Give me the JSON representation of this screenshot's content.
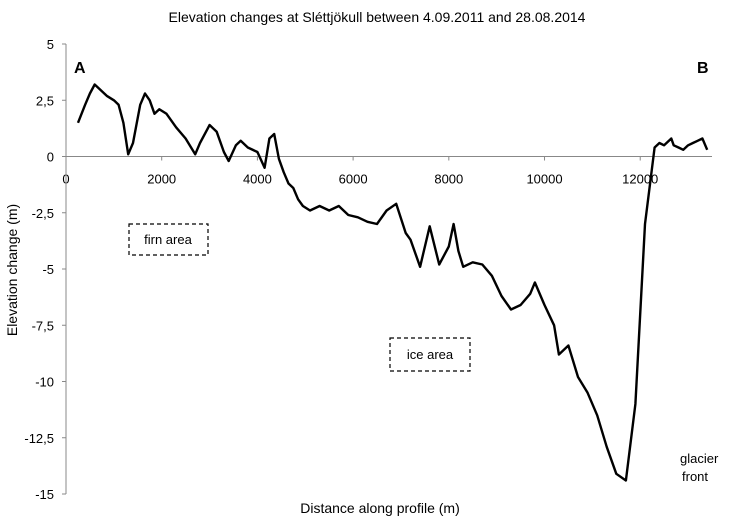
{
  "chart_data": {
    "type": "line",
    "title": "Elevation changes at Sléttjökull between 4.09.2011  and 28.08.2014",
    "xlabel": "Distance along profile (m)",
    "ylabel": "Elevation change (m)",
    "xlim": [
      0,
      13500
    ],
    "ylim": [
      -15,
      5
    ],
    "x_ticks": [
      "0",
      "2000",
      "4000",
      "6000",
      "8000",
      "10000",
      "12000"
    ],
    "x_tick_values": [
      0,
      2000,
      4000,
      6000,
      8000,
      10000,
      12000
    ],
    "y_ticks": [
      "5",
      "2,5",
      "0",
      "-2,5",
      "-5",
      "-7,5",
      "-10",
      "-12,5",
      "-15"
    ],
    "y_tick_values": [
      5,
      2.5,
      0,
      -2.5,
      -5,
      -7.5,
      -10,
      -12.5,
      -15
    ],
    "grid": false,
    "legend": "none",
    "line_color": "#000000",
    "annotations": {
      "start": "A",
      "end": "B",
      "firn": "firn area",
      "ice": "ice area",
      "front_line1": "glacier",
      "front_line2": "front"
    },
    "series": [
      {
        "x": [
          250,
          400,
          500,
          600,
          700,
          850,
          1000,
          1100,
          1200,
          1300,
          1400,
          1550,
          1650,
          1750,
          1850,
          1950,
          2100,
          2300,
          2500,
          2700,
          2800,
          3000,
          3150,
          3300,
          3400,
          3550,
          3650,
          3800,
          4000,
          4150,
          4250,
          4350,
          4450,
          4550,
          4650,
          4750,
          4850,
          4950,
          5100,
          5300,
          5500,
          5700,
          5900,
          6100,
          6300,
          6500,
          6700,
          6900,
          7100,
          7200,
          7400,
          7600,
          7800,
          8000,
          8100,
          8200,
          8300,
          8500,
          8700,
          8900,
          9100,
          9300,
          9500,
          9700,
          9800,
          10000,
          10200,
          10300,
          10500,
          10700,
          10900,
          11100,
          11300,
          11500,
          11700,
          11900,
          12100,
          12300,
          12400,
          12500,
          12600,
          12650,
          12700,
          12800,
          12900,
          13000,
          13100,
          13200,
          13300,
          13400
        ],
        "y": [
          1.5,
          2.3,
          2.8,
          3.2,
          3.0,
          2.7,
          2.5,
          2.3,
          1.5,
          0.1,
          0.6,
          2.3,
          2.8,
          2.5,
          1.9,
          2.1,
          1.9,
          1.3,
          0.8,
          0.1,
          0.6,
          1.4,
          1.1,
          0.2,
          -0.2,
          0.5,
          0.7,
          0.4,
          0.2,
          -0.5,
          0.8,
          1.0,
          -0.1,
          -0.7,
          -1.2,
          -1.4,
          -1.9,
          -2.2,
          -2.4,
          -2.2,
          -2.4,
          -2.2,
          -2.6,
          -2.7,
          -2.9,
          -3.0,
          -2.4,
          -2.1,
          -3.4,
          -3.7,
          -4.9,
          -3.1,
          -4.8,
          -4.0,
          -3.0,
          -4.2,
          -4.9,
          -4.7,
          -4.8,
          -5.3,
          -6.2,
          -6.8,
          -6.6,
          -6.1,
          -5.6,
          -6.6,
          -7.5,
          -8.8,
          -8.4,
          -9.8,
          -10.5,
          -11.5,
          -12.9,
          -14.1,
          -14.4,
          -11.0,
          -3.0,
          0.4,
          0.6,
          0.5,
          0.7,
          0.8,
          0.5,
          0.4,
          0.3,
          0.5,
          0.6,
          0.7,
          0.8,
          0.3
        ]
      }
    ]
  }
}
